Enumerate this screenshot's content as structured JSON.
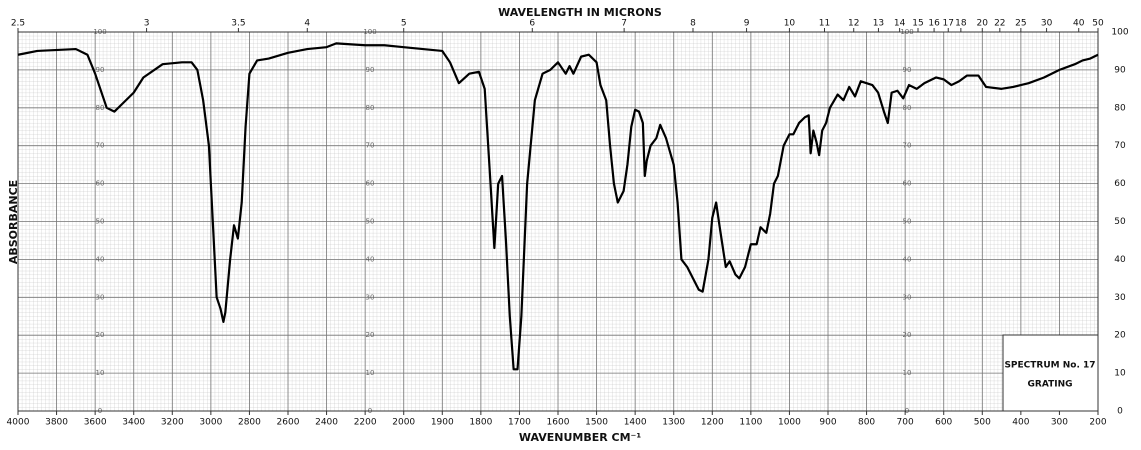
{
  "chart_data": {
    "type": "line",
    "title": "WAVELENGTH IN MICRONS",
    "xlabel": "WAVENUMBER CM⁻¹",
    "ylabel": "ABSORBANCE",
    "annotations": [
      "SPECTRUM No. 17",
      "GRATING"
    ],
    "color": "#000000",
    "grid": true,
    "xlim": [
      4000,
      200
    ],
    "xbreak": 2000,
    "xticks": [
      4000,
      3800,
      3600,
      3400,
      3200,
      3000,
      2800,
      2600,
      2400,
      2200,
      2000,
      1900,
      1800,
      1700,
      1600,
      1500,
      1400,
      1300,
      1200,
      1100,
      1000,
      900,
      800,
      700,
      600,
      500,
      400,
      300,
      200
    ],
    "x2ticks": [
      2.5,
      3,
      3.5,
      4,
      5,
      6,
      7,
      8,
      9,
      10,
      11,
      12,
      13,
      14,
      15,
      16,
      17,
      18,
      20,
      22,
      25,
      30,
      40,
      50
    ],
    "ylim": [
      0,
      100
    ],
    "yticks": [
      0,
      10,
      20,
      30,
      40,
      50,
      60,
      70,
      80,
      90,
      100
    ],
    "x": [
      4000,
      3900,
      3700,
      3640,
      3600,
      3580,
      3540,
      3500,
      3460,
      3400,
      3350,
      3250,
      3150,
      3100,
      3070,
      3040,
      3010,
      2990,
      2970,
      2950,
      2935,
      2925,
      2900,
      2880,
      2860,
      2840,
      2820,
      2800,
      2760,
      2700,
      2600,
      2500,
      2400,
      2350,
      2200,
      2100,
      2000,
      1900,
      1880,
      1857,
      1830,
      1805,
      1790,
      1775,
      1765,
      1755,
      1745,
      1735,
      1725,
      1715,
      1705,
      1695,
      1680,
      1660,
      1640,
      1620,
      1600,
      1580,
      1570,
      1560,
      1540,
      1520,
      1500,
      1490,
      1475,
      1465,
      1455,
      1445,
      1430,
      1420,
      1410,
      1400,
      1390,
      1380,
      1375,
      1370,
      1360,
      1345,
      1335,
      1320,
      1300,
      1290,
      1280,
      1265,
      1250,
      1235,
      1225,
      1210,
      1200,
      1190,
      1180,
      1165,
      1155,
      1140,
      1130,
      1115,
      1100,
      1085,
      1075,
      1060,
      1050,
      1040,
      1030,
      1015,
      1000,
      990,
      975,
      960,
      950,
      945,
      938,
      930,
      923,
      915,
      905,
      895,
      875,
      860,
      845,
      830,
      815,
      800,
      785,
      770,
      755,
      745,
      735,
      720,
      705,
      690,
      670,
      650,
      620,
      600,
      580,
      560,
      540,
      510,
      490,
      450,
      420,
      380,
      340,
      300,
      260,
      240,
      220,
      200
    ],
    "values": [
      94,
      95,
      95.5,
      94,
      89,
      86,
      80,
      79,
      81,
      84,
      88,
      91.5,
      92,
      92,
      90,
      82,
      70,
      50,
      30,
      27,
      23.5,
      26,
      40,
      49,
      45.5,
      55,
      75,
      89,
      92.5,
      93,
      94.5,
      95.5,
      96,
      97,
      96.5,
      96.5,
      96,
      95,
      92,
      86.5,
      89,
      89.5,
      85,
      60,
      43,
      60,
      62,
      45,
      25,
      11,
      11,
      25,
      60,
      82,
      89,
      90,
      92,
      89,
      91,
      89,
      93.5,
      94,
      92,
      86,
      82,
      70,
      60,
      55,
      58,
      65,
      75,
      79.5,
      79,
      76,
      62,
      66,
      70,
      72,
      75.5,
      72,
      65,
      55,
      40,
      38,
      35,
      32,
      31.5,
      40,
      51,
      55,
      48,
      38,
      39.5,
      36,
      35,
      38,
      44,
      44,
      48.5,
      47,
      52,
      60,
      62,
      70,
      73,
      73,
      76,
      77.5,
      78,
      68,
      74,
      71,
      67.5,
      74,
      76,
      80,
      83.5,
      82,
      85.5,
      83,
      87,
      86.5,
      86,
      84,
      79,
      76,
      84,
      84.5,
      82.5,
      86,
      85,
      86.5,
      88,
      87.5,
      86,
      87,
      88.5,
      88.5,
      85.5,
      85,
      85.5,
      86.5,
      88,
      90,
      91.5,
      92.5,
      93,
      94
    ]
  }
}
